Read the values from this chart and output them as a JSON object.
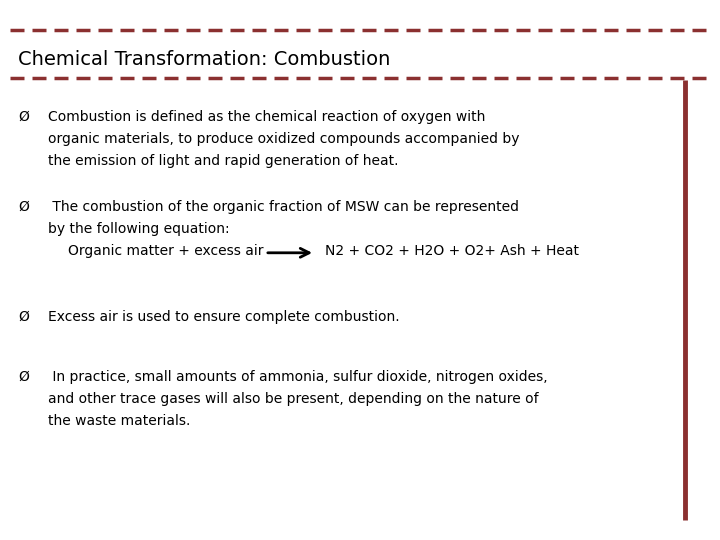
{
  "title": "Chemical Transformation: Combustion",
  "title_fontsize": 14,
  "body_fontsize": 10,
  "title_font": "DejaVu Sans",
  "background_color": "#ffffff",
  "line_color": "#8B3030",
  "right_bar_color": "#8B3030",
  "text_color": "#000000",
  "bullet_symbol": "Ø",
  "bullet1_line1": "Combustion is defined as the chemical reaction of oxygen with",
  "bullet1_line2": "organic materials, to produce oxidized compounds accompanied by",
  "bullet1_line3": "the emission of light and rapid generation of heat.",
  "bullet2_line1": " The combustion of the organic fraction of MSW can be represented",
  "bullet2_line2": "by the following equation:",
  "equation_left": "Organic matter + excess air",
  "equation_right": "N2 + CO2 + H2O + O2+ Ash + Heat",
  "bullet3": "Excess air is used to ensure complete combustion.",
  "bullet4_line1": " In practice, small amounts of ammonia, sulfur dioxide, nitrogen oxides,",
  "bullet4_line2": "and other trace gases will also be present, depending on the nature of",
  "bullet4_line3": "the waste materials."
}
